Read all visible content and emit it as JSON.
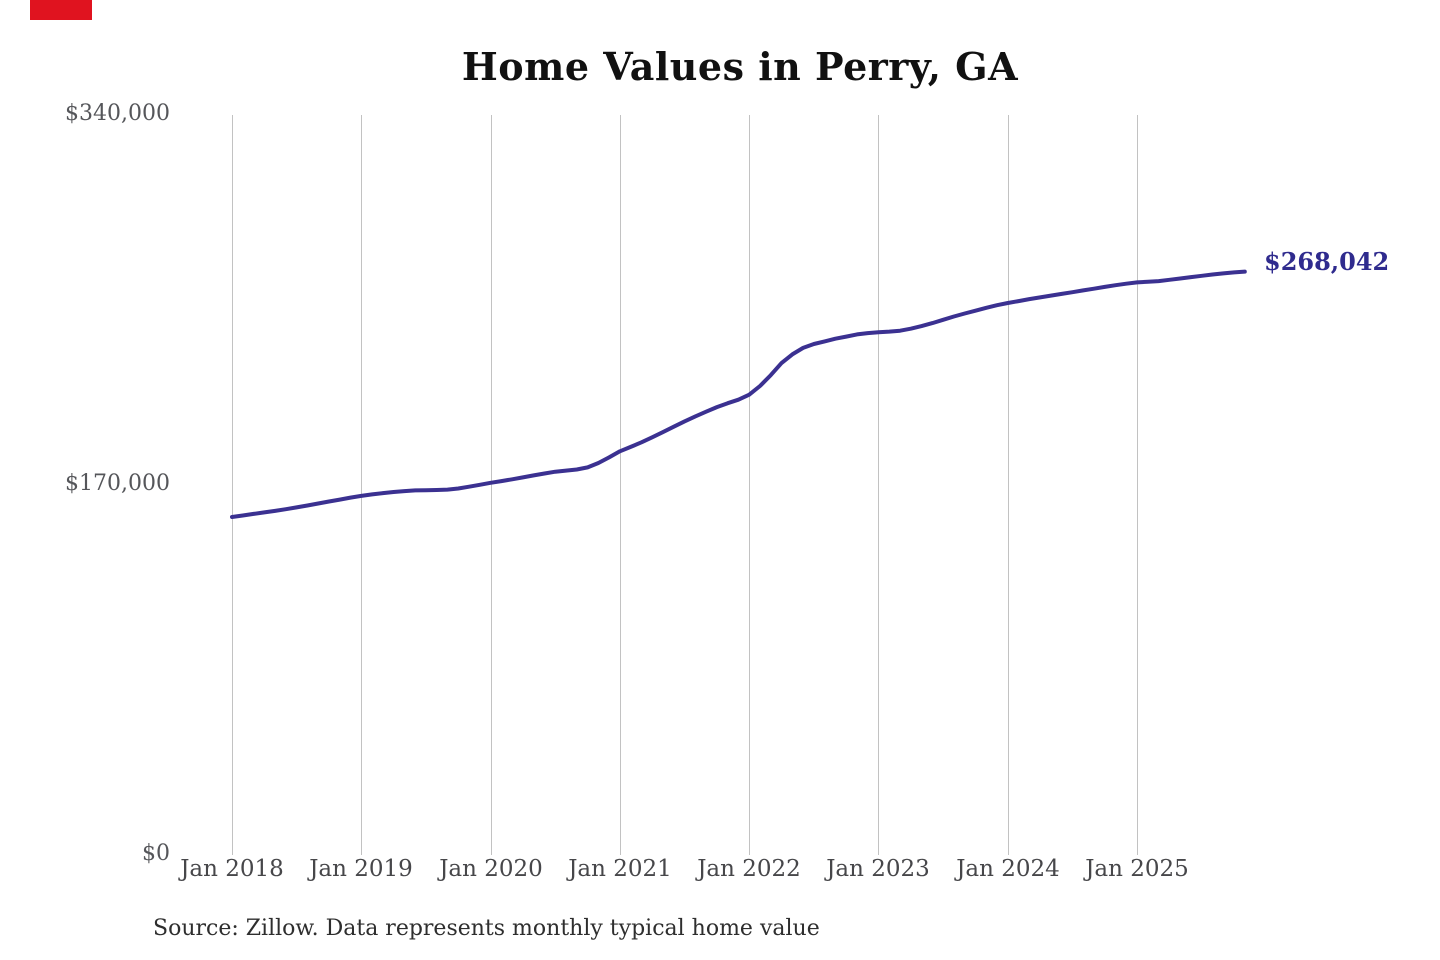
{
  "title": "Home Values in Perry, GA",
  "source_note": "Source: Zillow. Data represents monthly typical home value",
  "colors": {
    "background": "#ffffff",
    "line": "#3b3191",
    "end_label_text": "#2f2b8e",
    "gridline": "#c2c2c2",
    "title_text": "#111111",
    "axis_text": "#55565a",
    "source_text": "#2e2e2e",
    "corner_marker": "#e0131f"
  },
  "chart_data": {
    "type": "line",
    "title": "Home Values in Perry, GA",
    "series_name": "Monthly typical home value",
    "frequency": "monthly",
    "x_start": "Jan 2018",
    "x_end": "Nov 2025",
    "x_tick_labels": [
      "Jan 2018",
      "Jan 2019",
      "Jan 2020",
      "Jan 2021",
      "Jan 2022",
      "Jan 2023",
      "Jan 2024",
      "Jan 2025"
    ],
    "y_ticks": [
      "$0",
      "$170,000",
      "$340,000"
    ],
    "ylim": [
      0,
      340000
    ],
    "grid": "vertical-only",
    "legend": "none",
    "end_label": "$268,042",
    "final_value": 268042,
    "values": [
      155300,
      156000,
      156700,
      157400,
      158100,
      158900,
      159700,
      160600,
      161500,
      162400,
      163300,
      164200,
      165000,
      165700,
      166300,
      166800,
      167200,
      167500,
      167600,
      167700,
      167900,
      168400,
      169200,
      170100,
      171000,
      171800,
      172600,
      173500,
      174400,
      175300,
      176100,
      176600,
      177100,
      178100,
      180100,
      182700,
      185500,
      187500,
      189600,
      191900,
      194300,
      196800,
      199200,
      201500,
      203700,
      205800,
      207600,
      209200,
      211500,
      215500,
      220500,
      226000,
      230000,
      233000,
      234800,
      236000,
      237200,
      238200,
      239200,
      239800,
      240200,
      240500,
      240900,
      241800,
      243000,
      244400,
      245900,
      247400,
      248800,
      250100,
      251400,
      252600,
      253600,
      254500,
      255400,
      256200,
      257000,
      257800,
      258600,
      259400,
      260200,
      261000,
      261800,
      262500,
      263100,
      263400,
      263700,
      264300,
      264900,
      265500,
      266100,
      266700,
      267200,
      267700,
      268042
    ]
  }
}
